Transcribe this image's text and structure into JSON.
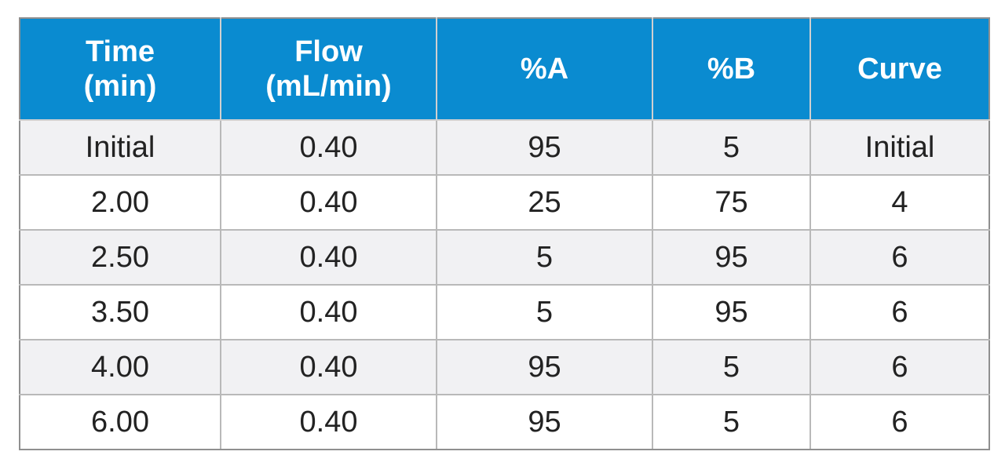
{
  "table": {
    "header_color": "#0a8bd0",
    "headers": [
      "Time\n(min)",
      "Flow\n(mL/min)",
      "%A",
      "%B",
      "Curve"
    ],
    "rows": [
      [
        "Initial",
        "0.40",
        "95",
        "5",
        "Initial"
      ],
      [
        "2.00",
        "0.40",
        "25",
        "75",
        "4"
      ],
      [
        "2.50",
        "0.40",
        "5",
        "95",
        "6"
      ],
      [
        "3.50",
        "0.40",
        "5",
        "95",
        "6"
      ],
      [
        "4.00",
        "0.40",
        "95",
        "5",
        "6"
      ],
      [
        "6.00",
        "0.40",
        "95",
        "5",
        "6"
      ]
    ]
  }
}
